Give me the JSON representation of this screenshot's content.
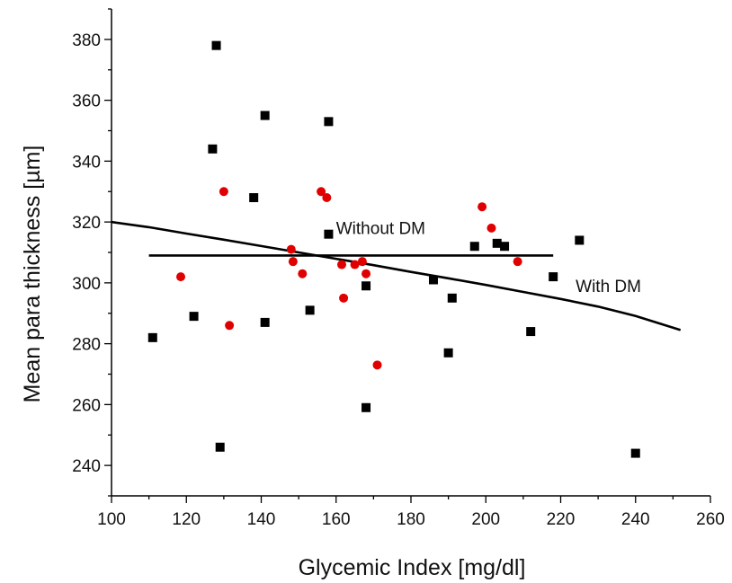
{
  "chart_data": {
    "type": "scatter",
    "title": "",
    "xlabel": "Glycemic Index [mg/dl]",
    "ylabel": "Mean para thickness [µm]",
    "xlim": [
      100,
      260
    ],
    "ylim": [
      230,
      390
    ],
    "xticks": [
      100,
      120,
      140,
      160,
      180,
      200,
      220,
      240,
      260
    ],
    "yticks": [
      240,
      260,
      280,
      300,
      320,
      340,
      360,
      380
    ],
    "grid": false,
    "legend": "none",
    "series": [
      {
        "marker": "square",
        "color": "#000000",
        "points": [
          [
            111,
            282
          ],
          [
            122,
            289
          ],
          [
            127,
            344
          ],
          [
            128,
            378
          ],
          [
            129,
            246
          ],
          [
            138,
            328
          ],
          [
            141,
            355
          ],
          [
            141,
            287
          ],
          [
            153,
            291
          ],
          [
            158,
            353
          ],
          [
            158,
            316
          ],
          [
            168,
            299
          ],
          [
            168,
            259
          ],
          [
            186,
            301
          ],
          [
            190,
            277
          ],
          [
            191,
            295
          ],
          [
            197,
            312
          ],
          [
            203,
            313
          ],
          [
            205,
            312
          ],
          [
            212,
            284
          ],
          [
            218,
            302
          ],
          [
            225,
            314
          ],
          [
            240,
            244
          ]
        ]
      },
      {
        "marker": "circle",
        "color": "#e00000",
        "points": [
          [
            118.5,
            302
          ],
          [
            130,
            330
          ],
          [
            131.5,
            286
          ],
          [
            148,
            311
          ],
          [
            148.5,
            307
          ],
          [
            151,
            303
          ],
          [
            156,
            330
          ],
          [
            157.5,
            328
          ],
          [
            161.5,
            306
          ],
          [
            162,
            295
          ],
          [
            165,
            306
          ],
          [
            167,
            307
          ],
          [
            168,
            303
          ],
          [
            171,
            273
          ],
          [
            199,
            325
          ],
          [
            201.5,
            318
          ],
          [
            208.5,
            307
          ]
        ]
      }
    ],
    "fit_lines": [
      {
        "label": "Without DM",
        "x": [
          110,
          218
        ],
        "y": [
          309,
          309
        ]
      },
      {
        "label": "With DM",
        "x": [
          100,
          110,
          120,
          130,
          140,
          150,
          160,
          170,
          180,
          190,
          200,
          210,
          220,
          230,
          240,
          252
        ],
        "y": [
          320,
          318.3,
          316.2,
          314.2,
          312.1,
          310,
          307.9,
          305.8,
          303.6,
          301.5,
          299.3,
          297,
          294.7,
          292.2,
          289.1,
          284.5
        ]
      }
    ],
    "annotations": [
      {
        "text": "Without DM",
        "x": 160,
        "y": 316
      },
      {
        "text": "With DM",
        "x": 224,
        "y": 297
      }
    ]
  }
}
